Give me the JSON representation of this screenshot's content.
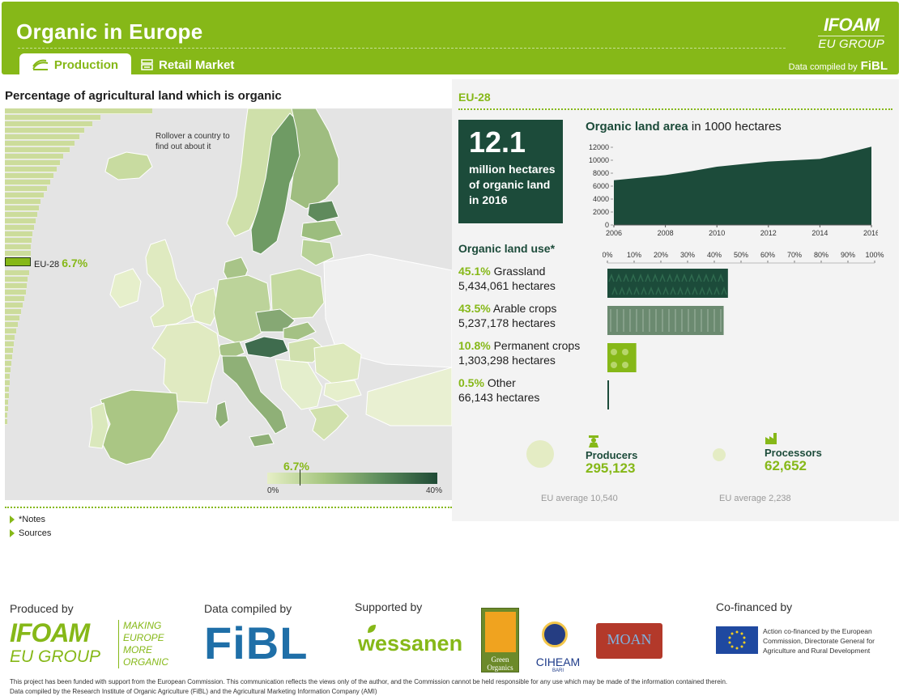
{
  "header": {
    "title": "Organic in Europe",
    "logo_line1": "IFOAM",
    "logo_line2": "EU GROUP",
    "tabs": [
      {
        "label": "Production",
        "active": true
      },
      {
        "label": "Retail Market",
        "active": false
      }
    ],
    "compiled_label": "Data compiled by",
    "compiled_org": "FiBL"
  },
  "colors": {
    "brand_green": "#86b818",
    "dark_green": "#1c4b3a",
    "panel_bg": "#f3f3f3"
  },
  "left": {
    "title": "Percentage of agricultural land which is organic",
    "rollover_hint": "Rollover a country to find out about it",
    "eu_label": "EU-28",
    "eu_value": "6.7%",
    "scale_value": "6.7%",
    "scale_min": "0%",
    "scale_max": "40%",
    "links": [
      "*Notes",
      "Sources"
    ]
  },
  "right": {
    "section": "EU-28",
    "big_number": "12.1",
    "big_text": "million hectares of organic land in 2016",
    "area_chart_title_bold": "Organic land area",
    "area_chart_title_rest": " in 1000 hectares",
    "land_use_title": "Organic land use*",
    "land_use": [
      {
        "pct": "45.1%",
        "name": "Grassland",
        "hectares": "5,434,061 hectares",
        "value": 45.1
      },
      {
        "pct": "43.5%",
        "name": "Arable crops",
        "hectares": "5,237,178 hectares",
        "value": 43.5
      },
      {
        "pct": "10.8%",
        "name": "Permanent crops",
        "hectares": "1,303,298 hectares",
        "value": 10.8
      },
      {
        "pct": "0.5%",
        "name": "Other",
        "hectares": "66,143 hectares",
        "value": 0.5
      }
    ],
    "pct_ticks": [
      "0%",
      "10%",
      "20%",
      "30%",
      "40%",
      "50%",
      "60%",
      "70%",
      "80%",
      "90%",
      "100%"
    ],
    "producers_label": "Producers",
    "producers_value": "295,123",
    "producers_avg": "EU average 10,540",
    "processors_label": "Processors",
    "processors_value": "62,652",
    "processors_avg": "EU average 2,238"
  },
  "chart_data": {
    "type": "area",
    "x": [
      2006,
      2007,
      2008,
      2009,
      2010,
      2011,
      2012,
      2013,
      2014,
      2015,
      2016
    ],
    "values": [
      6900,
      7300,
      7700,
      8300,
      9000,
      9400,
      9800,
      10000,
      10200,
      11100,
      12100
    ],
    "xticks": [
      "2006",
      "2008",
      "2010",
      "2012",
      "2014",
      "2016"
    ],
    "yticks": [
      "0",
      "2000",
      "4000",
      "6000",
      "8000",
      "10000",
      "12000"
    ],
    "xlim": [
      2006,
      2016
    ],
    "ylim": [
      0,
      12000
    ],
    "title": "Organic land area in 1000 hectares"
  },
  "footer": {
    "produced_by": "Produced by",
    "compiled_by": "Data compiled by",
    "supported_by": "Supported by",
    "cofinanced_by": "Co-financed by",
    "ifoam_tagline": [
      "MAKING",
      "EUROPE",
      "MORE",
      "ORGANIC"
    ],
    "ifoam_logo_line1": "IFOAM",
    "ifoam_logo_line2": "EU GROUP",
    "fibl_logo": "FiBL",
    "wessanen": "wessanen",
    "green_organics": "Green Organics",
    "ciheam": "CIHEAM",
    "ciheam_sub": "BARI",
    "moan": "MOAN",
    "eu_text": "Action co-financed by the European Commission, Directorate General for Agriculture and Rural Development",
    "disclaimer": "This project has been funded with support from the European Commission. This communication reflects the views only of the author, and the Commission cannot be held responsible for any use which may be made of the information contained therein.",
    "compiled_note": "Data compiled by the Research Institute of Organic Agriculture (FiBL) and the Agricultural Marketing Information Company (AMI)"
  }
}
